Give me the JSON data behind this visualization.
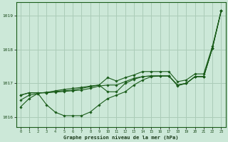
{
  "title": "Graphe pression niveau de la mer (hPa)",
  "bg_color": "#cce8d8",
  "grid_color": "#aaccb8",
  "line_color": "#1a5c1a",
  "ylim": [
    1015.7,
    1019.4
  ],
  "xlim": [
    -0.5,
    23.5
  ],
  "yticks": [
    1016,
    1017,
    1018,
    1019
  ],
  "xticks": [
    0,
    1,
    2,
    3,
    4,
    5,
    6,
    7,
    8,
    9,
    10,
    11,
    12,
    13,
    14,
    15,
    16,
    17,
    18,
    19,
    20,
    21,
    22,
    23
  ],
  "line1": [
    1016.65,
    1016.72,
    1016.72,
    1016.72,
    1016.74,
    1016.76,
    1016.78,
    1016.8,
    1016.85,
    1016.92,
    1016.95,
    1016.95,
    1017.05,
    1017.15,
    1017.2,
    1017.22,
    1017.22,
    1017.22,
    1016.95,
    1017.0,
    1017.2,
    1017.2,
    1018.05,
    1019.15
  ],
  "line2": [
    1016.5,
    1016.65,
    1016.7,
    1016.36,
    1016.14,
    1016.04,
    1016.04,
    1016.04,
    1016.15,
    1016.36,
    1016.55,
    1016.65,
    1016.75,
    1016.95,
    1017.1,
    1017.2,
    1017.22,
    1017.22,
    1016.93,
    1017.0,
    1017.2,
    1017.2,
    1018.05,
    1019.15
  ],
  "line3": [
    1016.3,
    1016.55,
    1016.7,
    1016.74,
    1016.76,
    1016.78,
    1016.8,
    1016.85,
    1016.9,
    1016.95,
    1016.75,
    1016.75,
    1017.0,
    1017.12,
    1017.2,
    1017.22,
    1017.22,
    1017.22,
    1016.95,
    1017.0,
    1017.2,
    1017.2,
    1018.05,
    1019.15
  ],
  "line4": [
    1016.65,
    1016.72,
    1016.72,
    1016.72,
    1016.78,
    1016.82,
    1016.85,
    1016.88,
    1016.92,
    1016.95,
    1017.17,
    1017.07,
    1017.17,
    1017.25,
    1017.35,
    1017.35,
    1017.35,
    1017.35,
    1017.05,
    1017.1,
    1017.28,
    1017.28,
    1018.1,
    1019.15
  ]
}
